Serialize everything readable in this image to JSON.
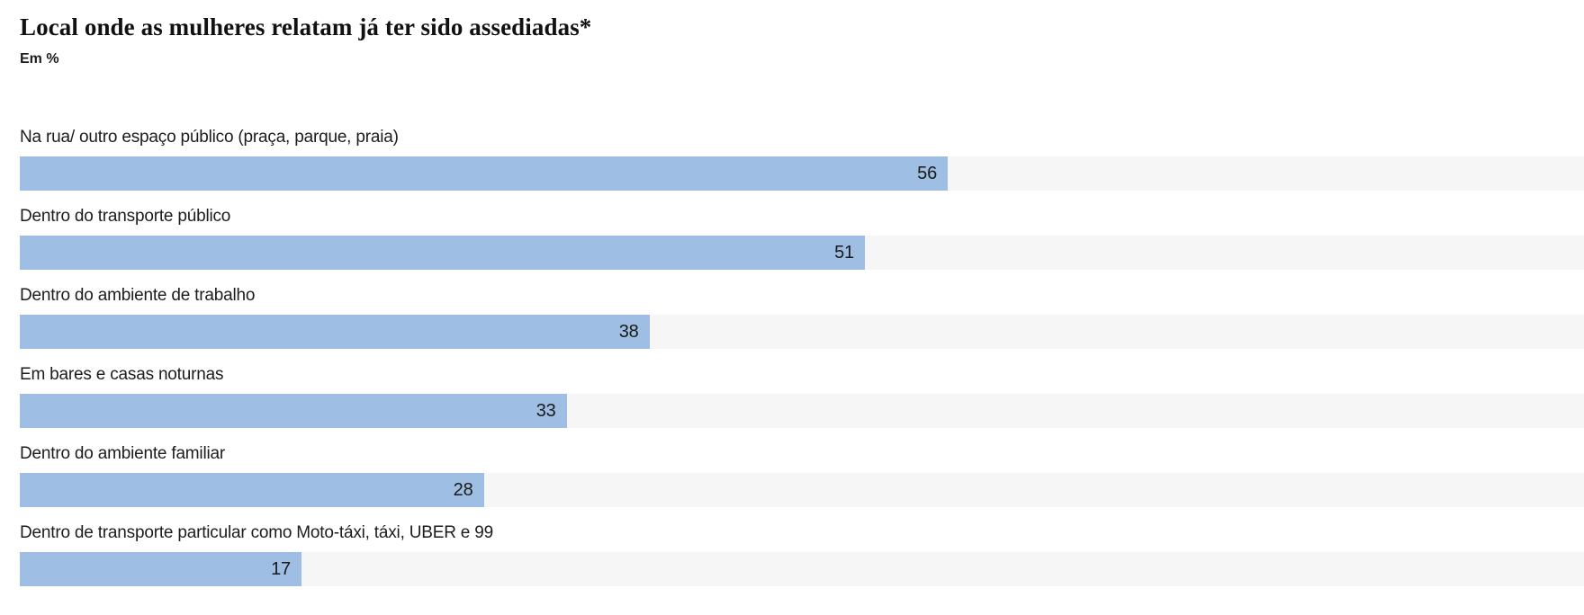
{
  "header": {
    "title": "Local onde as mulheres relatam já ter sido assediadas*",
    "subtitle": "Em %"
  },
  "colors": {
    "bar": "#9ebee3",
    "track": "#f6f6f6",
    "title_text": "#111111",
    "label_text": "#1c1c1c",
    "value_text": "#1a1a1a",
    "background": "#ffffff"
  },
  "chart_data": {
    "type": "bar",
    "orientation": "horizontal",
    "title": "Local onde as mulheres relatam já ter sido assediadas*",
    "subtitle": "Em %",
    "unit": "%",
    "categories": [
      "Na rua/ outro espaço público (praça, parque, praia)",
      "Dentro do transporte público",
      "Dentro do ambiente de trabalho",
      "Em bares e casas noturnas",
      "Dentro do ambiente familiar",
      "Dentro de transporte particular como Moto-táxi, táxi, UBER e 99"
    ],
    "values": [
      56,
      51,
      38,
      33,
      28,
      17
    ],
    "xlim": [
      0,
      100
    ],
    "track_visible_max": 94.4,
    "value_label_position": "inside-bar-end",
    "grid": false,
    "legend": false
  }
}
